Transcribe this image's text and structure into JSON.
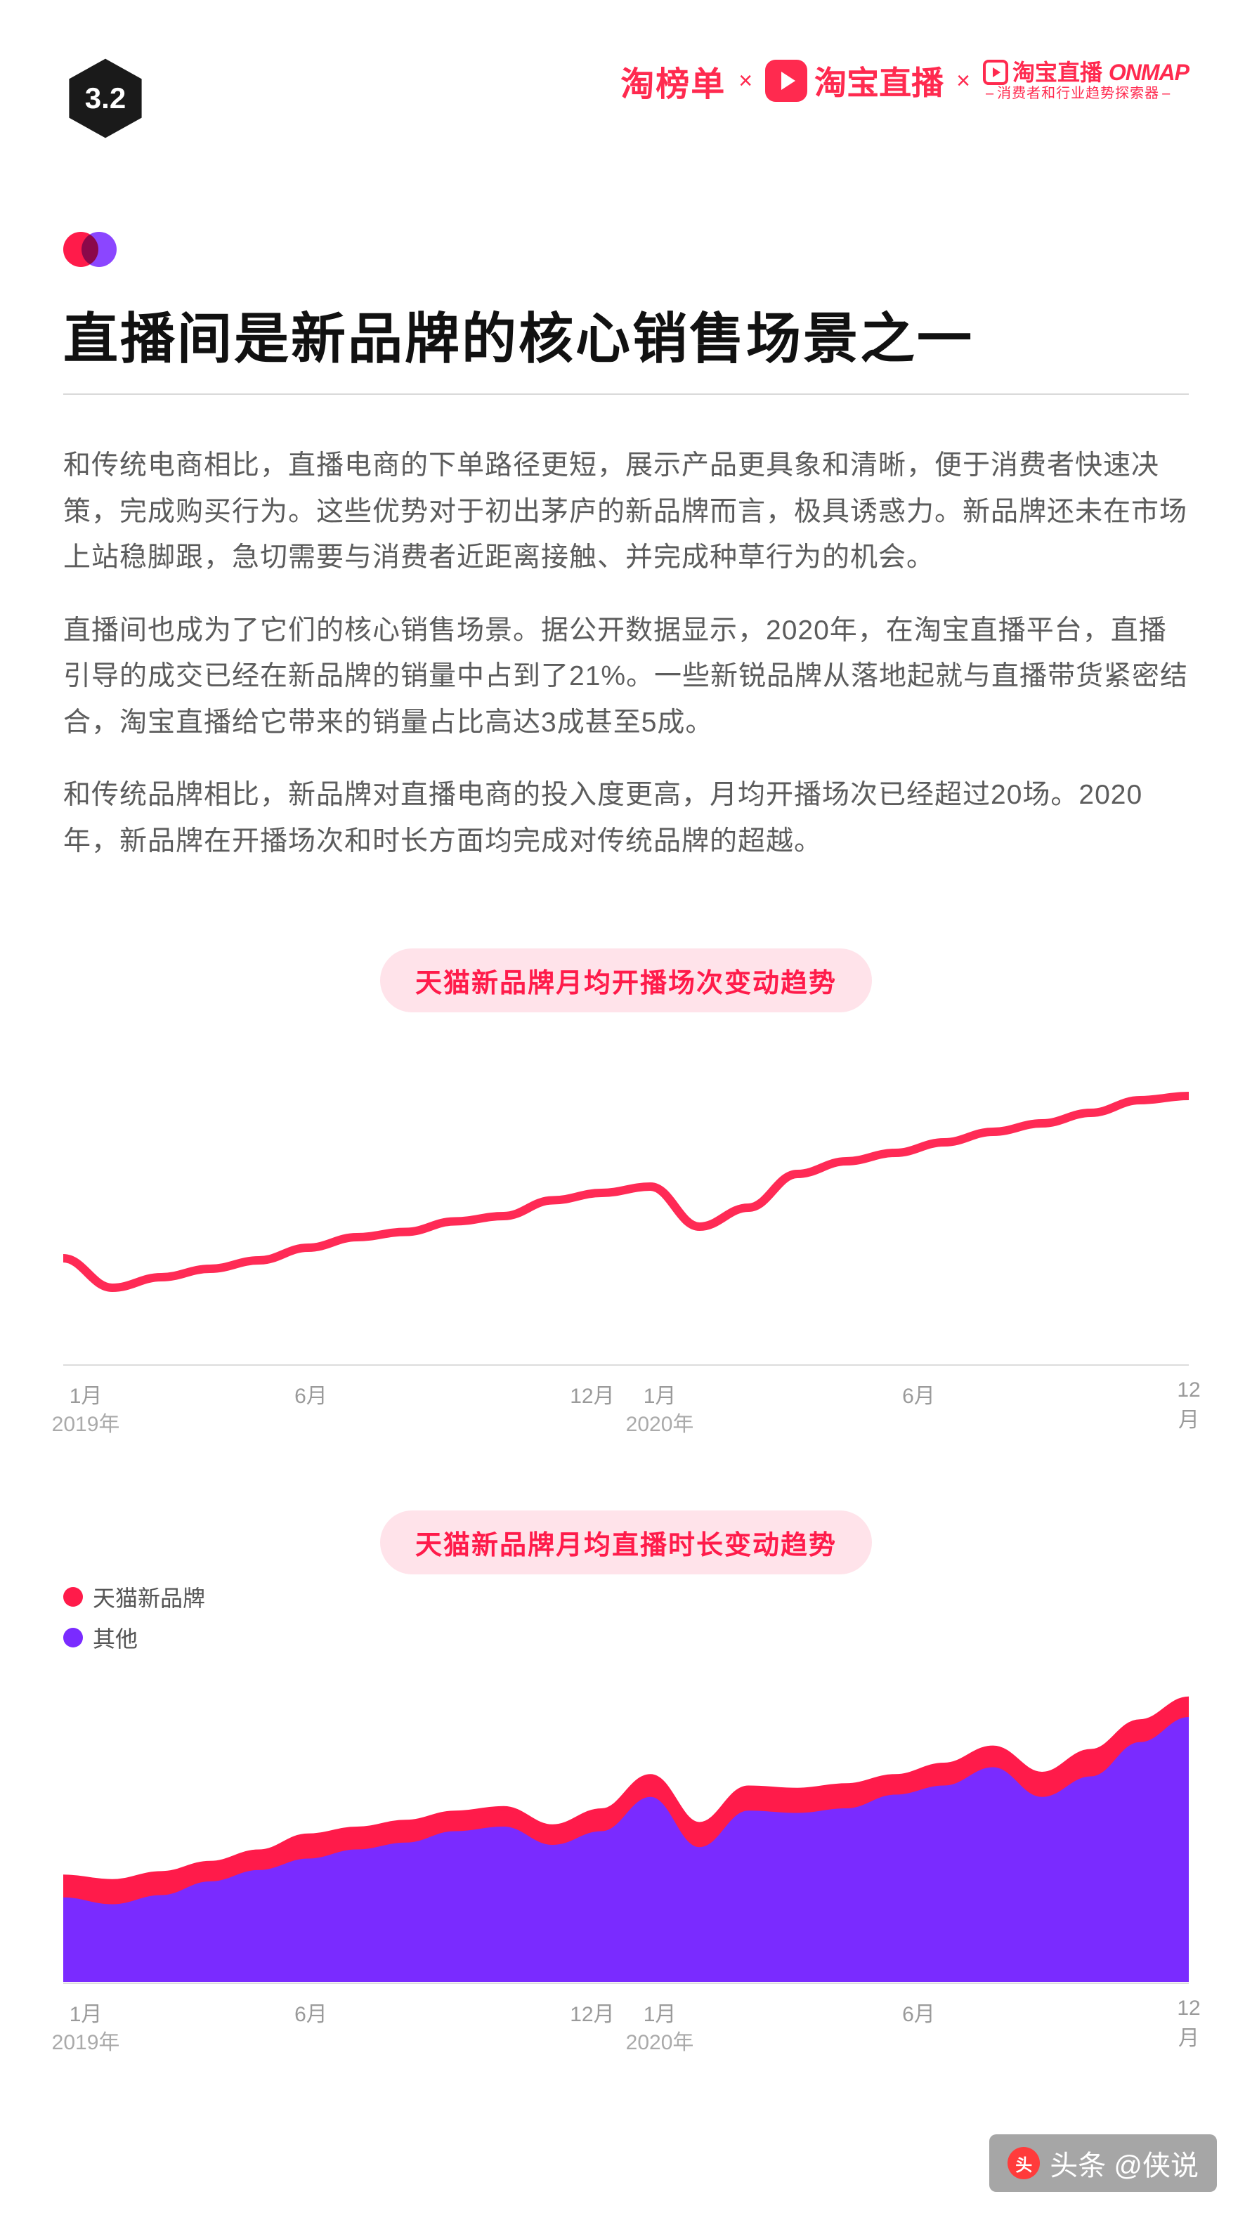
{
  "header": {
    "section_number": "3.2",
    "logo_tbd": "淘榜单",
    "logo_tbzb": "淘宝直播",
    "logo_onmap_prefix": "淘宝直播",
    "logo_onmap_en": "ONMAP",
    "logo_onmap_sub": "消费者和行业趋势探索器"
  },
  "title": "直播间是新品牌的核心销售场景之一",
  "paragraphs": [
    "和传统电商相比，直播电商的下单路径更短，展示产品更具象和清晰，便于消费者快速决策，完成购买行为。这些优势对于初出茅庐的新品牌而言，极具诱惑力。新品牌还未在市场上站稳脚跟，急切需要与消费者近距离接触、并完成种草行为的机会。",
    "直播间也成为了它们的核心销售场景。据公开数据显示，2020年，在淘宝直播平台，直播引导的成交已经在新品牌的销量中占到了21%。一些新锐品牌从落地起就与直播带货紧密结合，淘宝直播给它带来的销量占比高达3成甚至5成。",
    "和传统品牌相比，新品牌对直播电商的投入度更高，月均开播场次已经超过20场。2020年，新品牌在开播场次和时长方面均完成对传统品牌的超越。"
  ],
  "chart1": {
    "type": "line",
    "title": "天猫新品牌月均开播场次变动趋势",
    "line_color": "#ff2a55",
    "line_width": 8,
    "x_ticks": [
      "1月",
      "6月",
      "12月",
      "1月",
      "6月",
      "12月"
    ],
    "x_tick_pos": [
      2,
      22,
      47,
      53,
      76,
      100
    ],
    "year_labels": [
      "2019年",
      "2020年"
    ],
    "year_pos": [
      2,
      53
    ],
    "axis_color": "#dcdcdc",
    "tick_color": "#9a9a9a",
    "values": [
      220,
      248,
      238,
      230,
      222,
      210,
      200,
      195,
      185,
      180,
      165,
      158,
      152,
      190,
      172,
      140,
      128,
      120,
      110,
      100,
      92,
      82,
      70,
      66
    ],
    "viewbox_w": 1000,
    "viewbox_h": 320
  },
  "chart2": {
    "type": "area",
    "title": "天猫新品牌月均直播时长变动趋势",
    "legend": [
      {
        "label": "天猫新品牌",
        "color": "#ff1b4a"
      },
      {
        "label": "其他",
        "color": "#7a2bff"
      }
    ],
    "x_ticks": [
      "1月",
      "6月",
      "12月",
      "1月",
      "6月",
      "12月"
    ],
    "x_tick_pos": [
      2,
      22,
      47,
      53,
      76,
      100
    ],
    "year_labels": [
      "2019年",
      "2020年"
    ],
    "year_pos": [
      2,
      53
    ],
    "axis_color": "#dcdcdc",
    "tick_color": "#9a9a9a",
    "series_back": {
      "color": "#ff1b4a",
      "values": [
        228,
        232,
        225,
        216,
        206,
        192,
        186,
        180,
        172,
        168,
        184,
        170,
        140,
        182,
        150,
        152,
        148,
        140,
        130,
        115,
        138,
        118,
        92,
        72
      ]
    },
    "series_front": {
      "color": "#7a2bff",
      "values": [
        246,
        252,
        244,
        232,
        222,
        212,
        204,
        198,
        188,
        184,
        200,
        188,
        158,
        202,
        170,
        172,
        168,
        156,
        148,
        132,
        158,
        140,
        110,
        88
      ]
    },
    "viewbox_w": 1000,
    "viewbox_h": 320
  },
  "watermark": {
    "logo_text": "头",
    "text": "头条 @侠说"
  },
  "colors": {
    "brand_red": "#ff2a4f",
    "brand_purple": "#7a2bff",
    "pink_pill_bg": "#ffe3ea",
    "text_body": "#5c5c5c",
    "divider": "#d9d9d9"
  }
}
